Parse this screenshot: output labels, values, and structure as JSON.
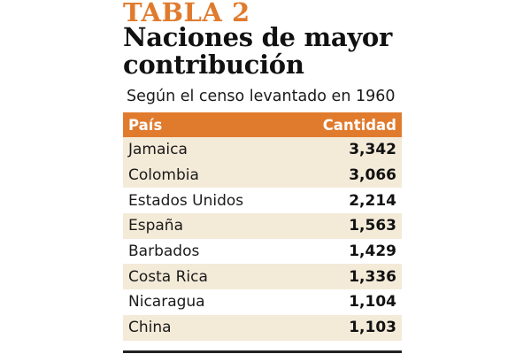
{
  "kicker": "TABLA 2",
  "title": "Naciones de mayor contribución",
  "subtitle": "Según el censo levantado en 1960",
  "table": {
    "headers": {
      "country": "País",
      "quantity": "Cantidad"
    },
    "rows": [
      {
        "country": "Jamaica",
        "quantity": "3,342"
      },
      {
        "country": "Colombia",
        "quantity": "3,066"
      },
      {
        "country": "Estados Unidos",
        "quantity": "2,214"
      },
      {
        "country": "España",
        "quantity": "1,563"
      },
      {
        "country": "Barbados",
        "quantity": "1,429"
      },
      {
        "country": "Costa Rica",
        "quantity": "1,336"
      },
      {
        "country": "Nicaragua",
        "quantity": "1,104"
      },
      {
        "country": "China",
        "quantity": "1,103"
      }
    ]
  },
  "colors": {
    "accent": "#e07b2e",
    "stripe": "#f3ead8",
    "text": "#1a1a1a"
  }
}
